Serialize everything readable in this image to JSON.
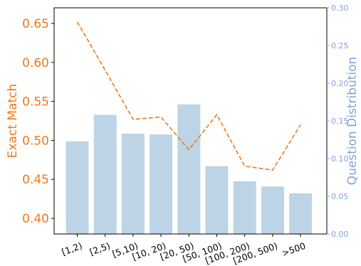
{
  "chart_data": {
    "type": "bar",
    "categories": [
      "[1,2)",
      "[2,5)",
      "[5,10)",
      "[10, 20)",
      "[20, 50)",
      "[50, 100)",
      "[100, 200)",
      "[200, 500)",
      ">500"
    ],
    "series": [
      {
        "name": "Exact Match",
        "type": "line",
        "axis": "left",
        "style": "dashed",
        "color": "#f07818",
        "values": [
          0.652,
          0.59,
          0.527,
          0.53,
          0.488,
          0.533,
          0.467,
          0.462,
          0.52
        ]
      },
      {
        "name": "Question Distribution",
        "type": "bar",
        "axis": "right",
        "color": "#bcd4e6",
        "values": [
          0.123,
          0.158,
          0.133,
          0.132,
          0.172,
          0.09,
          0.07,
          0.063,
          0.054
        ]
      }
    ],
    "ylabel": "Exact Match",
    "y2label": "Question Distribution",
    "ylim": [
      0.38,
      0.67
    ],
    "y2lim": [
      0.0,
      0.3
    ],
    "yticks": [
      "0.40",
      "0.45",
      "0.50",
      "0.55",
      "0.60",
      "0.65"
    ],
    "y2ticks": [
      "0.00",
      "0.05",
      "0.10",
      "0.15",
      "0.20",
      "0.25",
      "0.30"
    ],
    "grid": false,
    "colors": {
      "left_axis": "#f07818",
      "right_axis": "#7fa4d8",
      "bars": "#bcd4e6",
      "line": "#f07818"
    }
  }
}
